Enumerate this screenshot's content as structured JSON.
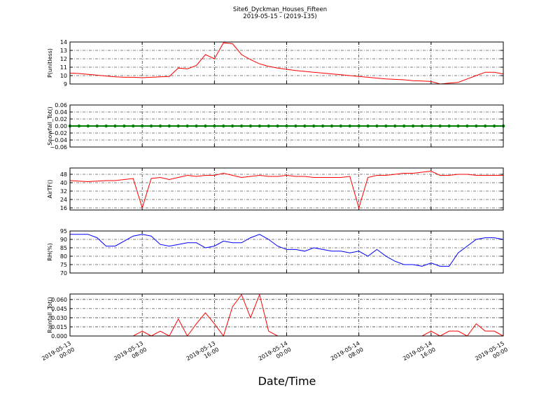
{
  "chart_data": {
    "type": "line",
    "title": "Site6_Dyckman_Houses_Fifteen",
    "subtitle": "2019-05-15 - (2019-135)",
    "xlabel": "Date/Time",
    "grid": true,
    "x": [
      "2019-05-13 00:00",
      "2019-05-13 01:00",
      "2019-05-13 02:00",
      "2019-05-13 03:00",
      "2019-05-13 04:00",
      "2019-05-13 05:00",
      "2019-05-13 06:00",
      "2019-05-13 07:00",
      "2019-05-13 08:00",
      "2019-05-13 09:00",
      "2019-05-13 10:00",
      "2019-05-13 11:00",
      "2019-05-13 12:00",
      "2019-05-13 13:00",
      "2019-05-13 14:00",
      "2019-05-13 15:00",
      "2019-05-13 16:00",
      "2019-05-13 17:00",
      "2019-05-13 18:00",
      "2019-05-13 19:00",
      "2019-05-13 20:00",
      "2019-05-13 21:00",
      "2019-05-13 22:00",
      "2019-05-13 23:00",
      "2019-05-14 00:00",
      "2019-05-14 01:00",
      "2019-05-14 02:00",
      "2019-05-14 03:00",
      "2019-05-14 04:00",
      "2019-05-14 05:00",
      "2019-05-14 06:00",
      "2019-05-14 07:00",
      "2019-05-14 08:00",
      "2019-05-14 09:00",
      "2019-05-14 10:00",
      "2019-05-14 11:00",
      "2019-05-14 12:00",
      "2019-05-14 13:00",
      "2019-05-14 14:00",
      "2019-05-14 15:00",
      "2019-05-14 16:00",
      "2019-05-14 17:00",
      "2019-05-14 18:00",
      "2019-05-14 19:00",
      "2019-05-14 20:00",
      "2019-05-14 21:00",
      "2019-05-14 22:00",
      "2019-05-14 23:00",
      "2019-05-15 00:00"
    ],
    "xlim": [
      "2019-05-13 00:00",
      "2019-05-15 00:00"
    ],
    "xticks": [
      "2019-05-13 00:00",
      "2019-05-13 08:00",
      "2019-05-13 16:00",
      "2019-05-14 00:00",
      "2019-05-14 08:00",
      "2019-05-14 16:00",
      "2019-05-15 00:00"
    ],
    "panels": [
      {
        "ylabel": "P(unitless)",
        "ylim": [
          9,
          14
        ],
        "yticks": [
          9,
          10,
          11,
          12,
          13,
          14
        ],
        "series": [
          {
            "color": "#ff0000",
            "values": [
              10.3,
              10.25,
              10.15,
              10.05,
              9.95,
              9.85,
              9.8,
              9.8,
              9.75,
              9.8,
              9.85,
              9.9,
              10.9,
              10.8,
              11.2,
              12.5,
              12.0,
              13.9,
              13.8,
              12.5,
              11.9,
              11.4,
              11.1,
              10.9,
              10.75,
              10.6,
              10.5,
              10.4,
              10.3,
              10.2,
              10.1,
              10.0,
              9.9,
              9.8,
              9.7,
              9.6,
              9.55,
              9.5,
              9.4,
              9.35,
              9.3,
              9.0,
              9.1,
              9.2,
              9.6,
              10.0,
              10.4,
              10.4,
              10.2
            ]
          }
        ]
      },
      {
        "ylabel": "Snowfall_Tot()",
        "ylim": [
          -0.06,
          0.06
        ],
        "yticks": [
          {
            "value": -0.06,
            "label": "−0.06"
          },
          {
            "value": -0.04,
            "label": "−0.04"
          },
          {
            "value": -0.02,
            "label": "−0.02"
          },
          {
            "value": 0,
            "label": "0.00"
          },
          {
            "value": 0.02,
            "label": "0.02"
          },
          {
            "value": 0.04,
            "label": "0.04"
          },
          {
            "value": 0.06,
            "label": "0.06"
          }
        ],
        "series": [
          {
            "color": "#008000",
            "markers": true,
            "values": [
              0,
              0,
              0,
              0,
              0,
              0,
              0,
              0,
              0,
              0,
              0,
              0,
              0,
              0,
              0,
              0,
              0,
              0,
              0,
              0,
              0,
              0,
              0,
              0,
              0,
              0,
              0,
              0,
              0,
              0,
              0,
              0,
              0,
              0,
              0,
              0,
              0,
              0,
              0,
              0,
              0,
              0,
              0,
              0,
              0,
              0,
              0,
              0,
              0
            ]
          }
        ]
      },
      {
        "ylabel": "AirTF()",
        "ylim": [
          14,
          54
        ],
        "yticks": [
          16,
          24,
          32,
          40,
          48
        ],
        "series": [
          {
            "color": "#ff0000",
            "values": [
              42,
              41.5,
              41,
              41.5,
              42,
              42,
              43,
              44,
              16,
              44,
              45,
              43,
              45,
              47,
              46,
              47,
              47,
              49,
              47,
              45,
              46,
              47,
              46,
              46,
              47,
              46,
              46,
              45,
              45,
              45,
              45,
              46,
              16,
              45,
              47,
              47,
              48,
              49,
              49,
              50,
              51,
              47,
              47,
              48,
              48,
              47,
              47,
              47,
              47
            ]
          }
        ]
      },
      {
        "ylabel": "RH(%)",
        "ylim": [
          70,
          95
        ],
        "yticks": [
          70,
          75,
          80,
          85,
          90,
          95
        ],
        "series": [
          {
            "color": "#0000ff",
            "values": [
              93,
              93,
              93,
              91,
              86,
              86,
              89,
              92,
              93,
              92,
              87,
              86,
              87,
              88,
              88,
              85,
              86,
              89,
              88,
              88,
              91,
              93,
              90,
              86,
              84,
              84,
              83,
              85,
              84,
              83,
              83,
              82,
              83,
              80,
              84,
              80,
              77,
              75,
              75,
              74,
              76,
              74,
              74,
              82,
              86,
              90,
              91,
              91,
              90
            ]
          }
        ]
      },
      {
        "ylabel": "Rainfall_Tot()",
        "ylim": [
          0,
          0.069
        ],
        "yticks": [
          {
            "value": 0,
            "label": "0.000"
          },
          {
            "value": 0.015,
            "label": "0.015"
          },
          {
            "value": 0.03,
            "label": "0.030"
          },
          {
            "value": 0.045,
            "label": "0.045"
          },
          {
            "value": 0.06,
            "label": "0.060"
          }
        ],
        "series": [
          {
            "color": "#ff0000",
            "values": [
              0,
              0,
              0,
              0,
              0,
              0,
              0,
              0,
              0.008,
              0,
              0.008,
              0,
              0.028,
              0,
              0.02,
              0.038,
              0.02,
              0,
              0.048,
              0.068,
              0.03,
              0.068,
              0.008,
              0,
              0,
              0,
              0,
              0,
              0,
              0,
              0,
              0,
              0,
              0,
              0,
              0,
              0,
              0,
              0,
              0,
              0.008,
              0,
              0.008,
              0.008,
              0,
              0.02,
              0.008,
              0.008,
              0
            ]
          }
        ]
      }
    ]
  }
}
